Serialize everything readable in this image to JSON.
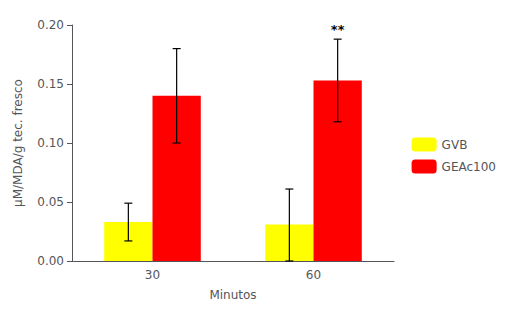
{
  "chart_data": {
    "type": "bar",
    "categories": [
      "30",
      "60"
    ],
    "xlabel": "Minutos",
    "ylabel": "µM/MDA/g tec. fresco",
    "series": [
      {
        "name": "GVB",
        "color": "#FFFF00",
        "values": [
          0.033,
          0.031
        ],
        "errors_up": [
          0.016,
          0.03
        ],
        "errors_down": [
          0.016,
          0.031
        ]
      },
      {
        "name": "GEAc100",
        "color": "#FF0000",
        "values": [
          0.14,
          0.153
        ],
        "errors_up": [
          0.04,
          0.035
        ],
        "errors_down": [
          0.04,
          0.035
        ]
      }
    ],
    "ylim": [
      0,
      0.2
    ],
    "yticks": [
      {
        "value": 0.0,
        "label": "0.00"
      },
      {
        "value": 0.05,
        "label": "0.05"
      },
      {
        "value": 0.1,
        "label": "0.10"
      },
      {
        "value": 0.15,
        "label": "0.15"
      },
      {
        "value": 0.2,
        "label": "0.20"
      }
    ],
    "grid": false,
    "legend": "right",
    "annotations": [
      {
        "text": "**",
        "series": "GEAc100",
        "category": "60"
      }
    ]
  }
}
